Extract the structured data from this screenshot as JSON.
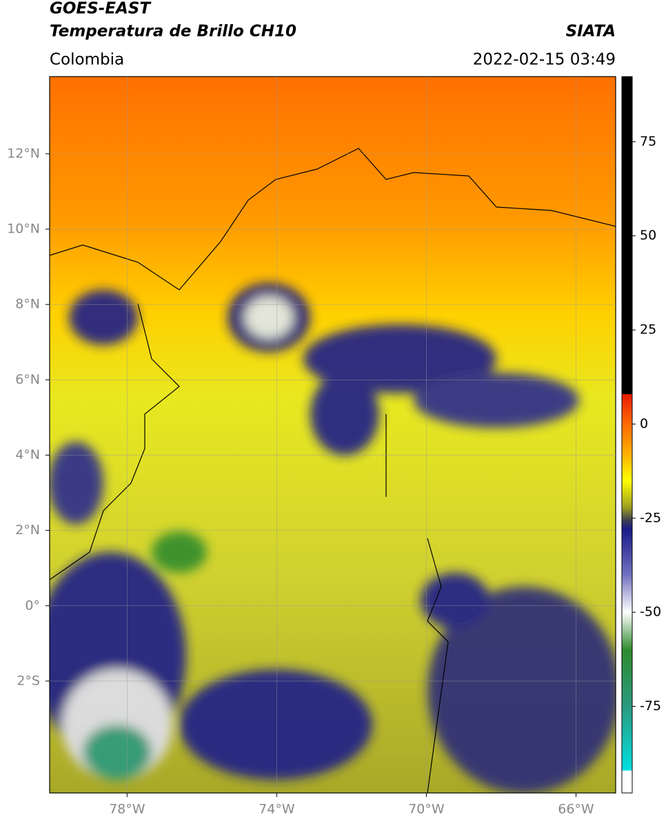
{
  "header": {
    "satellite": "GOES-EAST",
    "product": "Temperatura de Brillo CH10",
    "region": "Colombia",
    "source": "SIATA",
    "datetime": "2022-02-15 03:49"
  },
  "map": {
    "lonlim": [
      -80.07,
      -64.94
    ],
    "latlim": [
      -4.97,
      14.05
    ],
    "lonticks": [
      {
        "value": -78,
        "label": "78°W"
      },
      {
        "value": -74,
        "label": "74°W"
      },
      {
        "value": -70,
        "label": "70°W"
      },
      {
        "value": -66,
        "label": "66°W"
      }
    ],
    "latticks": [
      {
        "value": 12,
        "label": "12°N"
      },
      {
        "value": 10,
        "label": "10°N"
      },
      {
        "value": 8,
        "label": "8°N"
      },
      {
        "value": 6,
        "label": "6°N"
      },
      {
        "value": 4,
        "label": "4°N"
      },
      {
        "value": 2,
        "label": "2°N"
      },
      {
        "value": 0,
        "label": "0°"
      },
      {
        "value": -2,
        "label": "2°S"
      }
    ],
    "grid": true
  },
  "colorbar": {
    "lim": [
      -98,
      92.3
    ],
    "ticks": [
      75,
      50,
      25,
      0,
      -25,
      -50,
      -75
    ],
    "colormap": [
      {
        "value": 92.3,
        "color": "#000000"
      },
      {
        "value": 8,
        "color": "#000000"
      },
      {
        "value": 7.9,
        "color": "#e81a00"
      },
      {
        "value": 0,
        "color": "#ff6a00"
      },
      {
        "value": -8,
        "color": "#ffb000"
      },
      {
        "value": -15,
        "color": "#ffff00"
      },
      {
        "value": -22,
        "color": "#a0a020"
      },
      {
        "value": -25.5,
        "color": "#404050"
      },
      {
        "value": -28,
        "color": "#1a1a8a"
      },
      {
        "value": -40,
        "color": "#7070c0"
      },
      {
        "value": -50,
        "color": "#ffffff"
      },
      {
        "value": -60,
        "color": "#2e8b2e"
      },
      {
        "value": -75,
        "color": "#2a9a80"
      },
      {
        "value": -92,
        "color": "#00e0e0"
      },
      {
        "value": -92.1,
        "color": "#ffffff"
      },
      {
        "value": -98,
        "color": "#ffffff"
      }
    ]
  }
}
